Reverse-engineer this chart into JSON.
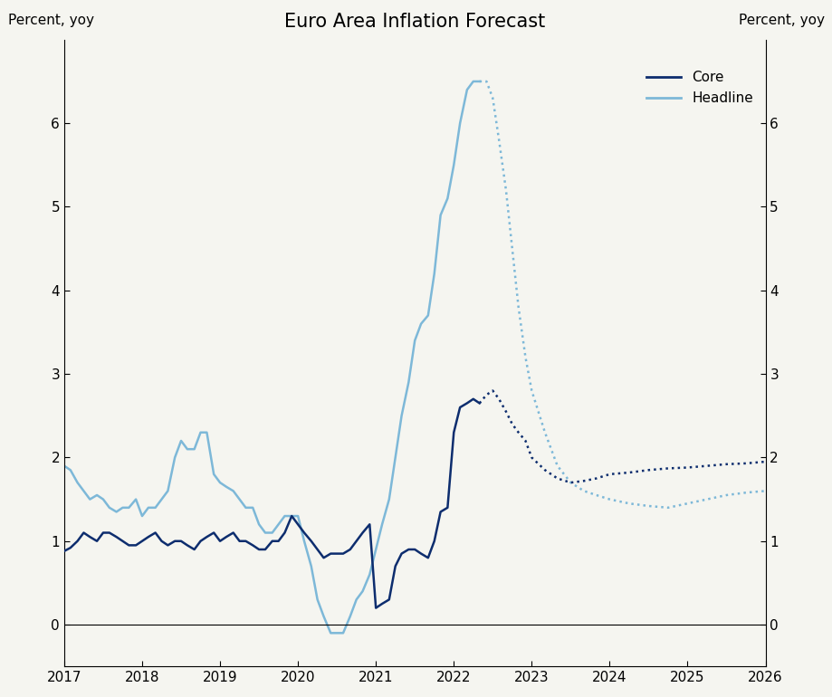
{
  "title": "Euro Area Inflation Forecast",
  "ylabel_left": "Percent, yoy",
  "ylabel_right": "Percent, yoy",
  "ylim": [
    -0.5,
    7.0
  ],
  "yticks": [
    0,
    1,
    2,
    3,
    4,
    5,
    6
  ],
  "core_color": "#0d2d6e",
  "headline_color": "#7db8d8",
  "background_color": "#f5f5f0",
  "core_solid_x": [
    2017.0,
    2017.08,
    2017.17,
    2017.25,
    2017.33,
    2017.42,
    2017.5,
    2017.58,
    2017.67,
    2017.75,
    2017.83,
    2017.92,
    2018.0,
    2018.08,
    2018.17,
    2018.25,
    2018.33,
    2018.42,
    2018.5,
    2018.58,
    2018.67,
    2018.75,
    2018.83,
    2018.92,
    2019.0,
    2019.08,
    2019.17,
    2019.25,
    2019.33,
    2019.42,
    2019.5,
    2019.58,
    2019.67,
    2019.75,
    2019.83,
    2019.92,
    2020.0,
    2020.08,
    2020.17,
    2020.25,
    2020.33,
    2020.42,
    2020.5,
    2020.58,
    2020.67,
    2020.75,
    2020.83,
    2020.92,
    2021.0,
    2021.08,
    2021.17,
    2021.25,
    2021.33,
    2021.42,
    2021.5,
    2021.58,
    2021.67,
    2021.75,
    2021.83,
    2021.92,
    2022.0,
    2022.08,
    2022.17,
    2022.25,
    2022.33
  ],
  "core_solid_y": [
    0.88,
    0.92,
    1.0,
    1.1,
    1.05,
    1.0,
    1.1,
    1.1,
    1.05,
    1.0,
    0.95,
    0.95,
    1.0,
    1.05,
    1.1,
    1.0,
    0.95,
    1.0,
    1.0,
    0.95,
    0.9,
    1.0,
    1.05,
    1.1,
    1.0,
    1.05,
    1.1,
    1.0,
    1.0,
    0.95,
    0.9,
    0.9,
    1.0,
    1.0,
    1.1,
    1.3,
    1.2,
    1.1,
    1.0,
    0.9,
    0.8,
    0.85,
    0.85,
    0.85,
    0.9,
    1.0,
    1.1,
    1.2,
    0.2,
    0.25,
    0.3,
    0.7,
    0.85,
    0.9,
    0.9,
    0.85,
    0.8,
    1.0,
    1.35,
    1.4,
    2.3,
    2.6,
    2.65,
    2.7,
    2.65
  ],
  "core_dotted_x": [
    2022.33,
    2022.42,
    2022.5,
    2022.58,
    2022.67,
    2022.75,
    2022.83,
    2022.92,
    2023.0,
    2023.17,
    2023.33,
    2023.5,
    2023.67,
    2023.83,
    2024.0,
    2024.25,
    2024.5,
    2024.75,
    2025.0,
    2025.25,
    2025.5,
    2025.75,
    2026.0
  ],
  "core_dotted_y": [
    2.65,
    2.75,
    2.8,
    2.7,
    2.55,
    2.4,
    2.3,
    2.2,
    2.0,
    1.85,
    1.75,
    1.7,
    1.72,
    1.75,
    1.8,
    1.82,
    1.85,
    1.87,
    1.88,
    1.9,
    1.92,
    1.93,
    1.95
  ],
  "headline_solid_x": [
    2017.0,
    2017.08,
    2017.17,
    2017.25,
    2017.33,
    2017.42,
    2017.5,
    2017.58,
    2017.67,
    2017.75,
    2017.83,
    2017.92,
    2018.0,
    2018.08,
    2018.17,
    2018.25,
    2018.33,
    2018.42,
    2018.5,
    2018.58,
    2018.67,
    2018.75,
    2018.83,
    2018.92,
    2019.0,
    2019.08,
    2019.17,
    2019.25,
    2019.33,
    2019.42,
    2019.5,
    2019.58,
    2019.67,
    2019.75,
    2019.83,
    2019.92,
    2020.0,
    2020.08,
    2020.17,
    2020.25,
    2020.33,
    2020.42,
    2020.5,
    2020.58,
    2020.67,
    2020.75,
    2020.83,
    2020.92,
    2021.0,
    2021.08,
    2021.17,
    2021.25,
    2021.33,
    2021.42,
    2021.5,
    2021.58,
    2021.67,
    2021.75,
    2021.83,
    2021.92,
    2022.0,
    2022.08,
    2022.17,
    2022.25,
    2022.33
  ],
  "headline_solid_y": [
    1.9,
    1.85,
    1.7,
    1.6,
    1.5,
    1.55,
    1.5,
    1.4,
    1.35,
    1.4,
    1.4,
    1.5,
    1.3,
    1.4,
    1.4,
    1.5,
    1.6,
    2.0,
    2.2,
    2.1,
    2.1,
    2.3,
    2.3,
    1.8,
    1.7,
    1.65,
    1.6,
    1.5,
    1.4,
    1.4,
    1.2,
    1.1,
    1.1,
    1.2,
    1.3,
    1.3,
    1.3,
    1.0,
    0.7,
    0.3,
    0.1,
    -0.1,
    -0.1,
    -0.1,
    0.1,
    0.3,
    0.4,
    0.6,
    0.9,
    1.2,
    1.5,
    2.0,
    2.5,
    2.9,
    3.4,
    3.6,
    3.7,
    4.2,
    4.9,
    5.1,
    5.5,
    6.0,
    6.4,
    6.5,
    6.5
  ],
  "headline_dotted_x": [
    2022.33,
    2022.42,
    2022.5,
    2022.58,
    2022.67,
    2022.75,
    2022.83,
    2022.92,
    2023.0,
    2023.17,
    2023.33,
    2023.5,
    2023.67,
    2023.83,
    2024.0,
    2024.25,
    2024.5,
    2024.75,
    2025.0,
    2025.25,
    2025.5,
    2025.75,
    2026.0
  ],
  "headline_dotted_y": [
    6.5,
    6.5,
    6.3,
    5.8,
    5.2,
    4.5,
    3.8,
    3.2,
    2.8,
    2.3,
    1.9,
    1.7,
    1.6,
    1.55,
    1.5,
    1.45,
    1.42,
    1.4,
    1.45,
    1.5,
    1.55,
    1.58,
    1.6
  ],
  "xlim": [
    2017.0,
    2026.0
  ],
  "xticks": [
    2017,
    2018,
    2019,
    2020,
    2021,
    2022,
    2023,
    2024,
    2025,
    2026
  ]
}
